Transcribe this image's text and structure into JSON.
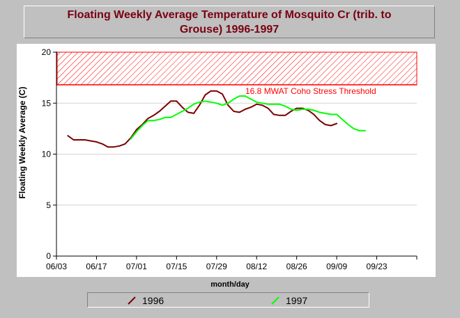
{
  "chart_data": {
    "type": "line",
    "title": "Floating Weekly Average Temperature of Mosquito Cr (trib. to Grouse) 1996-1997",
    "xlabel": "month/day",
    "ylabel": "Floating Weekly Average (C)",
    "xlim": [
      "06/03",
      "10/07"
    ],
    "ylim": [
      0,
      20
    ],
    "x_ticks": [
      "06/03",
      "06/17",
      "07/01",
      "07/15",
      "07/29",
      "08/12",
      "08/26",
      "09/09",
      "09/23"
    ],
    "y_ticks": [
      0,
      5,
      10,
      15,
      20
    ],
    "grid": true,
    "threshold": {
      "label": "16.8 MWAT Coho Stress Threshold",
      "value": 16.8,
      "range": [
        16.8,
        20
      ],
      "color": "#ff0000"
    },
    "legend_position": "bottom",
    "series": [
      {
        "name": "1996",
        "color": "#7a0000",
        "points": [
          [
            "06/07",
            11.8
          ],
          [
            "06/09",
            11.4
          ],
          [
            "06/11",
            11.4
          ],
          [
            "06/13",
            11.4
          ],
          [
            "06/15",
            11.3
          ],
          [
            "06/17",
            11.2
          ],
          [
            "06/19",
            11.0
          ],
          [
            "06/21",
            10.7
          ],
          [
            "06/23",
            10.7
          ],
          [
            "06/25",
            10.8
          ],
          [
            "06/27",
            11.0
          ],
          [
            "06/29",
            11.6
          ],
          [
            "07/01",
            12.4
          ],
          [
            "07/03",
            12.9
          ],
          [
            "07/05",
            13.5
          ],
          [
            "07/07",
            13.8
          ],
          [
            "07/09",
            14.2
          ],
          [
            "07/11",
            14.7
          ],
          [
            "07/13",
            15.2
          ],
          [
            "07/15",
            15.2
          ],
          [
            "07/17",
            14.6
          ],
          [
            "07/19",
            14.1
          ],
          [
            "07/21",
            14.0
          ],
          [
            "07/23",
            14.8
          ],
          [
            "07/25",
            15.8
          ],
          [
            "07/27",
            16.2
          ],
          [
            "07/29",
            16.2
          ],
          [
            "07/31",
            15.9
          ],
          [
            "08/02",
            14.8
          ],
          [
            "08/04",
            14.2
          ],
          [
            "08/06",
            14.1
          ],
          [
            "08/08",
            14.4
          ],
          [
            "08/10",
            14.6
          ],
          [
            "08/12",
            14.9
          ],
          [
            "08/14",
            14.8
          ],
          [
            "08/16",
            14.5
          ],
          [
            "08/18",
            13.9
          ],
          [
            "08/20",
            13.8
          ],
          [
            "08/22",
            13.8
          ],
          [
            "08/24",
            14.2
          ],
          [
            "08/26",
            14.5
          ],
          [
            "08/28",
            14.5
          ],
          [
            "08/30",
            14.3
          ],
          [
            "09/01",
            13.9
          ],
          [
            "09/03",
            13.3
          ],
          [
            "09/05",
            12.9
          ],
          [
            "09/07",
            12.8
          ],
          [
            "09/09",
            13.0
          ]
        ]
      },
      {
        "name": "1997",
        "color": "#00ff00",
        "points": [
          [
            "06/29",
            11.5
          ],
          [
            "07/01",
            12.2
          ],
          [
            "07/03",
            12.8
          ],
          [
            "07/05",
            13.3
          ],
          [
            "07/07",
            13.3
          ],
          [
            "07/09",
            13.4
          ],
          [
            "07/11",
            13.6
          ],
          [
            "07/13",
            13.6
          ],
          [
            "07/15",
            13.9
          ],
          [
            "07/17",
            14.2
          ],
          [
            "07/19",
            14.5
          ],
          [
            "07/21",
            14.9
          ],
          [
            "07/23",
            15.1
          ],
          [
            "07/25",
            15.2
          ],
          [
            "07/27",
            15.1
          ],
          [
            "07/29",
            15.0
          ],
          [
            "07/31",
            14.8
          ],
          [
            "08/02",
            15.0
          ],
          [
            "08/04",
            15.4
          ],
          [
            "08/06",
            15.7
          ],
          [
            "08/08",
            15.7
          ],
          [
            "08/10",
            15.4
          ],
          [
            "08/12",
            15.1
          ],
          [
            "08/14",
            15.0
          ],
          [
            "08/16",
            14.9
          ],
          [
            "08/18",
            14.9
          ],
          [
            "08/20",
            14.9
          ],
          [
            "08/22",
            14.7
          ],
          [
            "08/24",
            14.4
          ],
          [
            "08/26",
            14.3
          ],
          [
            "08/28",
            14.4
          ],
          [
            "08/30",
            14.4
          ],
          [
            "09/01",
            14.3
          ],
          [
            "09/03",
            14.1
          ],
          [
            "09/05",
            14.0
          ],
          [
            "09/07",
            13.9
          ],
          [
            "09/09",
            13.9
          ],
          [
            "09/11",
            13.4
          ],
          [
            "09/13",
            12.9
          ],
          [
            "09/15",
            12.5
          ],
          [
            "09/17",
            12.3
          ],
          [
            "09/19",
            12.3
          ]
        ]
      }
    ]
  }
}
